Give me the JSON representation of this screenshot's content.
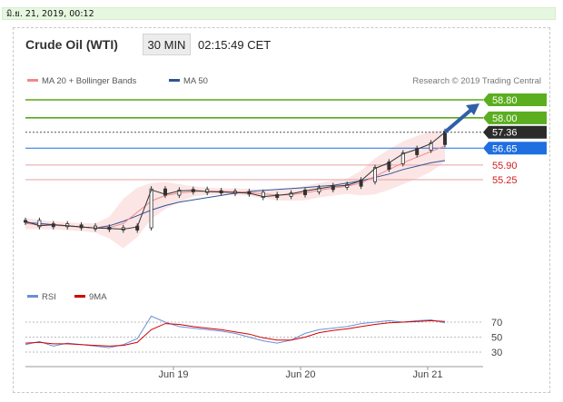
{
  "header": {
    "timestamp": "มิ.ย. 21, 2019, 00:12"
  },
  "chart": {
    "title": "Crude Oil (WTI)",
    "timeframe": "30 MIN",
    "time": "02:15:49 CET",
    "legend": [
      {
        "label": "MA 20 + Bollinger Bands",
        "color": "#f08a8a"
      },
      {
        "label": "MA 50",
        "color": "#2f5597"
      }
    ],
    "credit": "Research © 2019 Trading Central",
    "rsi_legend": [
      {
        "label": "RSI",
        "color": "#6a8fd8"
      },
      {
        "label": "9MA",
        "color": "#d40000"
      }
    ]
  },
  "chart_data": {
    "type": "line",
    "instrument": "Crude Oil (WTI)",
    "interval": "30 MIN",
    "x_ticks": [
      "Jun 19",
      "Jun 20",
      "Jun 21"
    ],
    "price_levels": [
      {
        "value": 58.8,
        "label": "58.80",
        "kind": "resistance",
        "color": "#58a81c"
      },
      {
        "value": 58.0,
        "label": "58.00",
        "kind": "resistance",
        "color": "#58a81c"
      },
      {
        "value": 57.36,
        "label": "57.36",
        "kind": "last",
        "color": "#333333"
      },
      {
        "value": 56.65,
        "label": "56.65",
        "kind": "pivot",
        "color": "#1f6fe0"
      },
      {
        "value": 55.9,
        "label": "55.90",
        "kind": "support",
        "color": "#e5a0a0"
      },
      {
        "value": 55.25,
        "label": "55.25",
        "kind": "support",
        "color": "#e5a0a0"
      }
    ],
    "price": {
      "x": [
        0,
        5,
        10,
        15,
        20,
        25,
        30,
        35,
        40,
        45,
        50,
        55,
        60,
        65,
        70,
        75,
        80,
        85,
        90,
        95,
        100,
        105,
        110,
        115,
        120,
        125,
        130,
        135,
        140,
        145,
        150
      ],
      "close": [
        53.4,
        53.2,
        53.25,
        53.2,
        53.15,
        53.1,
        53.08,
        53.05,
        53.15,
        54.8,
        54.6,
        54.75,
        54.78,
        54.72,
        54.7,
        54.68,
        54.65,
        54.5,
        54.55,
        54.62,
        54.75,
        54.85,
        54.95,
        55.0,
        55.2,
        55.75,
        56.0,
        56.4,
        56.6,
        56.85,
        57.36
      ]
    },
    "ma50": [
      53.35,
      53.3,
      53.25,
      53.2,
      53.15,
      53.1,
      53.2,
      53.4,
      53.65,
      53.9,
      54.1,
      54.25,
      54.35,
      54.45,
      54.55,
      54.65,
      54.72,
      54.78,
      54.82,
      54.86,
      54.9,
      54.95,
      55.0,
      55.1,
      55.2,
      55.35,
      55.5,
      55.7,
      55.85,
      56.0,
      56.1
    ],
    "ma20": [
      53.3,
      53.25,
      53.22,
      53.18,
      53.14,
      53.1,
      53.12,
      53.3,
      53.8,
      54.3,
      54.55,
      54.65,
      54.72,
      54.74,
      54.73,
      54.71,
      54.69,
      54.62,
      54.57,
      54.58,
      54.66,
      54.78,
      54.88,
      54.96,
      55.1,
      55.4,
      55.7,
      56.0,
      56.25,
      56.5,
      56.75
    ],
    "bollinger_upper": [
      53.55,
      53.45,
      53.4,
      53.36,
      53.32,
      53.3,
      53.6,
      54.4,
      54.9,
      55.1,
      55.15,
      55.05,
      54.95,
      54.9,
      54.88,
      54.86,
      54.85,
      54.82,
      54.8,
      54.85,
      54.98,
      55.1,
      55.22,
      55.3,
      55.65,
      56.2,
      56.6,
      56.95,
      57.2,
      57.4,
      57.45
    ],
    "bollinger_lower": [
      53.05,
      53.05,
      53.04,
      53.0,
      52.96,
      52.9,
      52.64,
      52.2,
      52.7,
      53.5,
      53.95,
      54.25,
      54.49,
      54.58,
      54.58,
      54.56,
      54.53,
      54.42,
      54.34,
      54.31,
      54.34,
      54.46,
      54.54,
      54.62,
      54.55,
      54.6,
      54.8,
      55.05,
      55.3,
      55.6,
      56.05
    ],
    "forecast_arrow": {
      "from": 57.36,
      "to": 58.8
    },
    "rsi": {
      "levels": [
        70,
        50,
        30
      ],
      "rsi": [
        40,
        44,
        38,
        42,
        40,
        38,
        36,
        40,
        48,
        78,
        70,
        64,
        62,
        60,
        58,
        55,
        50,
        45,
        42,
        46,
        55,
        60,
        62,
        64,
        68,
        70,
        72,
        70,
        72,
        73,
        69
      ],
      "ma9": [
        42,
        43,
        41,
        41,
        40,
        39,
        38,
        39,
        43,
        60,
        68,
        67,
        64,
        62,
        60,
        57,
        54,
        49,
        46,
        46,
        50,
        56,
        59,
        61,
        64,
        67,
        69,
        70,
        71,
        72,
        71
      ]
    }
  }
}
